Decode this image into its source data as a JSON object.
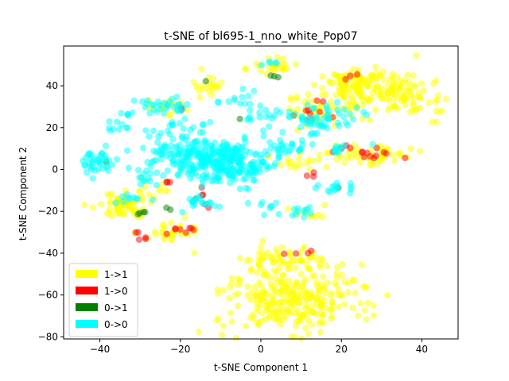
{
  "chart_data": {
    "type": "scatter",
    "title": "t-SNE of bl695-1_nno_white_Pop07",
    "xlabel": "t-SNE Component 1",
    "ylabel": "t-SNE Component 2",
    "xlim": [
      -49,
      49
    ],
    "ylim": [
      -81,
      59
    ],
    "xticks": [
      -40,
      -20,
      0,
      20,
      40
    ],
    "yticks": [
      -80,
      -60,
      -40,
      -20,
      0,
      20,
      40
    ],
    "grid": false,
    "legend_position": "lower-left",
    "series": [
      {
        "name": "1->1",
        "color": "#ffff00",
        "clusters": [
          {
            "cx": 27,
            "cy": 38,
            "sx": 7,
            "sy": 5,
            "n": 150
          },
          {
            "cx": 37,
            "cy": 33,
            "sx": 4,
            "sy": 5,
            "n": 40
          },
          {
            "cx": 22,
            "cy": 43,
            "sx": 3,
            "sy": 3,
            "n": 30
          },
          {
            "cx": 8,
            "cy": -62,
            "sx": 9,
            "sy": 8,
            "n": 280
          },
          {
            "cx": 8,
            "cy": -43,
            "sx": 7,
            "sy": 3,
            "n": 60
          },
          {
            "cx": -34,
            "cy": -17,
            "sx": 3,
            "sy": 3,
            "n": 70
          },
          {
            "cx": 28,
            "cy": 7,
            "sx": 5,
            "sy": 2.5,
            "n": 50
          },
          {
            "cx": 14,
            "cy": 28,
            "sx": 5,
            "sy": 4,
            "n": 40
          },
          {
            "cx": 3,
            "cy": 49,
            "sx": 2.5,
            "sy": 2,
            "n": 25
          },
          {
            "cx": -12,
            "cy": 40,
            "sx": 2,
            "sy": 3,
            "n": 20
          },
          {
            "cx": -23,
            "cy": -30,
            "sx": 4,
            "sy": 2,
            "n": 30
          },
          {
            "cx": 12,
            "cy": -20,
            "sx": 2,
            "sy": 1.5,
            "n": 10
          },
          {
            "cx": 10,
            "cy": 4,
            "sx": 4,
            "sy": 3,
            "n": 20
          },
          {
            "cx": -24,
            "cy": 30,
            "sx": 3,
            "sy": 2,
            "n": 15
          },
          {
            "cx": -26,
            "cy": -10,
            "sx": 3,
            "sy": 3,
            "n": 10
          }
        ]
      },
      {
        "name": "1->0",
        "color": "#ff0000",
        "clusters": [
          {
            "cx": 28,
            "cy": 7,
            "sx": 3,
            "sy": 1.5,
            "n": 12
          },
          {
            "cx": 13,
            "cy": 27,
            "sx": 3,
            "sy": 3,
            "n": 10
          },
          {
            "cx": -21,
            "cy": -29,
            "sx": 2,
            "sy": 1,
            "n": 8
          },
          {
            "cx": -30,
            "cy": -32,
            "sx": 1,
            "sy": 2,
            "n": 5
          },
          {
            "cx": -14,
            "cy": -13,
            "sx": 2,
            "sy": 2,
            "n": 6
          },
          {
            "cx": 8,
            "cy": -40,
            "sx": 2,
            "sy": 1,
            "n": 4
          },
          {
            "cx": 22,
            "cy": 44,
            "sx": 1,
            "sy": 1,
            "n": 3
          },
          {
            "cx": 20,
            "cy": 10,
            "sx": 1.5,
            "sy": 1,
            "n": 3
          },
          {
            "cx": -20,
            "cy": 30,
            "sx": 1,
            "sy": 1,
            "n": 2
          },
          {
            "cx": 13,
            "cy": -3,
            "sx": 2,
            "sy": 1,
            "n": 3
          },
          {
            "cx": -24,
            "cy": -6,
            "sx": 1,
            "sy": 1,
            "n": 3
          }
        ]
      },
      {
        "name": "0->1",
        "color": "#008000",
        "clusters": [
          {
            "cx": -29,
            "cy": -21,
            "sx": 1,
            "sy": 1,
            "n": 4
          },
          {
            "cx": 3,
            "cy": 44,
            "sx": 1,
            "sy": 1,
            "n": 3
          },
          {
            "cx": -24,
            "cy": -18,
            "sx": 1,
            "sy": 1,
            "n": 2
          },
          {
            "cx": -39,
            "cy": 5,
            "sx": 1,
            "sy": 1,
            "n": 1
          },
          {
            "cx": 20,
            "cy": -8,
            "sx": 1,
            "sy": 1,
            "n": 1
          },
          {
            "cx": -13,
            "cy": 42,
            "sx": 1,
            "sy": 1,
            "n": 1
          },
          {
            "cx": -4,
            "cy": 24,
            "sx": 1,
            "sy": 1,
            "n": 1
          }
        ]
      },
      {
        "name": "0->0",
        "color": "#00ffff",
        "clusters": [
          {
            "cx": -12,
            "cy": 5,
            "sx": 6,
            "sy": 5,
            "n": 260
          },
          {
            "cx": -22,
            "cy": 10,
            "sx": 4,
            "sy": 6,
            "n": 60
          },
          {
            "cx": -5,
            "cy": 0,
            "sx": 4,
            "sy": 4,
            "n": 50
          },
          {
            "cx": -41,
            "cy": 3,
            "sx": 3,
            "sy": 3,
            "n": 40
          },
          {
            "cx": 15,
            "cy": 24,
            "sx": 5,
            "sy": 4,
            "n": 60
          },
          {
            "cx": -25,
            "cy": 30,
            "sx": 4,
            "sy": 2,
            "n": 30
          },
          {
            "cx": -35,
            "cy": 20,
            "sx": 1.5,
            "sy": 1.5,
            "n": 10
          },
          {
            "cx": -33,
            "cy": 27,
            "sx": 1,
            "sy": 1,
            "n": 5
          },
          {
            "cx": -15,
            "cy": -15,
            "sx": 2,
            "sy": 2,
            "n": 20
          },
          {
            "cx": 21,
            "cy": -10,
            "sx": 3,
            "sy": 1.5,
            "n": 15
          },
          {
            "cx": 10,
            "cy": -20,
            "sx": 2,
            "sy": 1.5,
            "n": 12
          },
          {
            "cx": 3,
            "cy": 51,
            "sx": 1,
            "sy": 1,
            "n": 5
          },
          {
            "cx": 18,
            "cy": 10,
            "sx": 2,
            "sy": 2,
            "n": 10
          },
          {
            "cx": 5,
            "cy": 10,
            "sx": 4,
            "sy": 3,
            "n": 30
          },
          {
            "cx": 0,
            "cy": 26,
            "sx": 2,
            "sy": 3,
            "n": 15
          },
          {
            "cx": -32,
            "cy": -14,
            "sx": 2,
            "sy": 2,
            "n": 10
          },
          {
            "cx": -5,
            "cy": 33,
            "sx": 3,
            "sy": 2,
            "n": 12
          },
          {
            "cx": 0,
            "cy": -17,
            "sx": 2,
            "sy": 2,
            "n": 8
          },
          {
            "cx": -28,
            "cy": -5,
            "sx": 2,
            "sy": 2,
            "n": 10
          }
        ]
      }
    ]
  }
}
